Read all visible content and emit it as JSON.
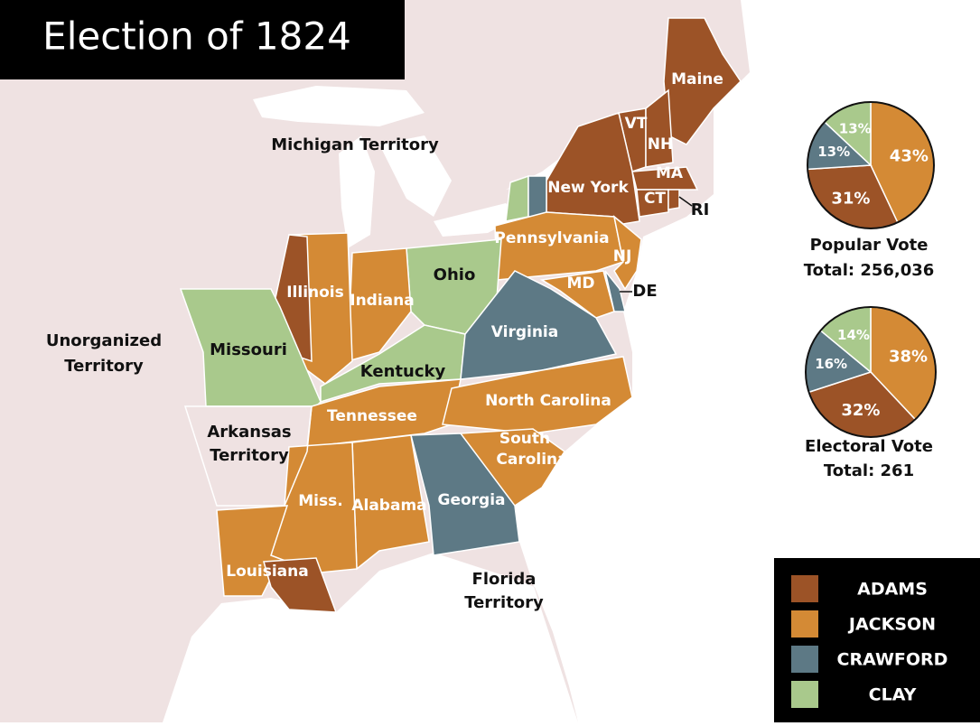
{
  "title": "Election of 1824",
  "map": {
    "states": [
      "Maine",
      "VT",
      "NH",
      "MA",
      "CT",
      "RI",
      "New York",
      "Pennsylvania",
      "NJ",
      "MD",
      "DE",
      "Ohio",
      "Indiana",
      "Illinois",
      "Missouri",
      "Kentucky",
      "Virginia",
      "Tennessee",
      "North Carolina",
      [
        "South",
        "Carolina"
      ],
      "Georgia",
      "Alabama",
      "Miss.",
      "Louisiana"
    ],
    "territories": [
      [
        "Michigan Territory"
      ],
      [
        "Unorganized",
        "Territory"
      ],
      [
        "Arkansas",
        "Territory"
      ],
      [
        "Florida",
        "Territory"
      ]
    ]
  },
  "chart_data": [
    {
      "type": "pie",
      "title": "Popular Vote",
      "subtitle": "Total: 256,036",
      "categories": [
        "ADAMS",
        "JACKSON",
        "CRAWFORD",
        "CLAY"
      ],
      "colors": [
        "#9c5327",
        "#d48a35",
        "#5d7985",
        "#a9c98c"
      ],
      "values": [
        31,
        43,
        13,
        13
      ],
      "value_labels": [
        "31%",
        "43%",
        "13%",
        "13%"
      ]
    },
    {
      "type": "pie",
      "title": "Electoral Vote",
      "subtitle": "Total: 261",
      "categories": [
        "ADAMS",
        "JACKSON",
        "CRAWFORD",
        "CLAY"
      ],
      "colors": [
        "#9c5327",
        "#d48a35",
        "#5d7985",
        "#a9c98c"
      ],
      "values": [
        32,
        38,
        16,
        14
      ],
      "value_labels": [
        "32%",
        "38%",
        "16%",
        "14%"
      ]
    }
  ]
}
